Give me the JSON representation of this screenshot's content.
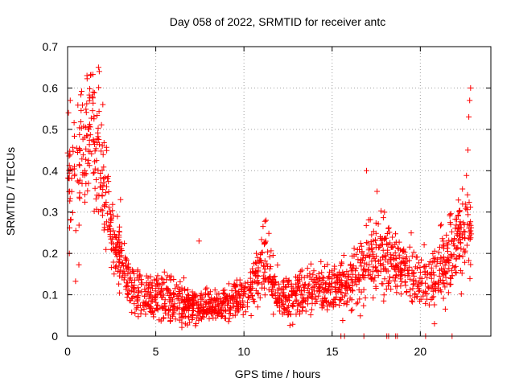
{
  "chart_data": {
    "type": "scatter",
    "title": "Day 058 of 2022, SRMTID for receiver antc",
    "xlabel": "GPS time / hours",
    "ylabel": "SRMTID / TECUs",
    "xlim": [
      0,
      24
    ],
    "ylim": [
      0,
      0.7
    ],
    "xticks": [
      0,
      5,
      10,
      15,
      20
    ],
    "yticks": [
      0,
      0.1,
      0.2,
      0.3,
      0.4,
      0.5,
      0.6,
      0.7
    ],
    "x_tick_labels": [
      "0",
      "5",
      "10",
      "15",
      "20"
    ],
    "y_tick_labels": [
      "0",
      "0.1",
      "0.2",
      "0.3",
      "0.4",
      "0.5",
      "0.6",
      "0.7"
    ],
    "grid": true,
    "marker": "+",
    "color": "#ff0000",
    "trend": [
      {
        "x": 0.0,
        "y": 0.4,
        "spread": 0.12
      },
      {
        "x": 0.5,
        "y": 0.38,
        "spread": 0.14
      },
      {
        "x": 1.0,
        "y": 0.45,
        "spread": 0.12
      },
      {
        "x": 1.3,
        "y": 0.52,
        "spread": 0.1
      },
      {
        "x": 1.7,
        "y": 0.45,
        "spread": 0.12
      },
      {
        "x": 2.1,
        "y": 0.35,
        "spread": 0.1
      },
      {
        "x": 2.5,
        "y": 0.24,
        "spread": 0.07
      },
      {
        "x": 3.0,
        "y": 0.18,
        "spread": 0.06
      },
      {
        "x": 3.5,
        "y": 0.12,
        "spread": 0.05
      },
      {
        "x": 4.0,
        "y": 0.1,
        "spread": 0.04
      },
      {
        "x": 5.0,
        "y": 0.1,
        "spread": 0.04
      },
      {
        "x": 6.0,
        "y": 0.09,
        "spread": 0.04
      },
      {
        "x": 7.0,
        "y": 0.07,
        "spread": 0.03
      },
      {
        "x": 8.0,
        "y": 0.07,
        "spread": 0.03
      },
      {
        "x": 9.0,
        "y": 0.08,
        "spread": 0.03
      },
      {
        "x": 10.0,
        "y": 0.1,
        "spread": 0.04
      },
      {
        "x": 10.8,
        "y": 0.14,
        "spread": 0.05
      },
      {
        "x": 11.2,
        "y": 0.2,
        "spread": 0.06
      },
      {
        "x": 11.6,
        "y": 0.12,
        "spread": 0.05
      },
      {
        "x": 12.5,
        "y": 0.08,
        "spread": 0.04
      },
      {
        "x": 13.0,
        "y": 0.1,
        "spread": 0.04
      },
      {
        "x": 14.0,
        "y": 0.12,
        "spread": 0.04
      },
      {
        "x": 15.0,
        "y": 0.11,
        "spread": 0.04
      },
      {
        "x": 16.0,
        "y": 0.13,
        "spread": 0.05
      },
      {
        "x": 17.0,
        "y": 0.18,
        "spread": 0.07
      },
      {
        "x": 18.0,
        "y": 0.2,
        "spread": 0.07
      },
      {
        "x": 19.0,
        "y": 0.16,
        "spread": 0.06
      },
      {
        "x": 20.0,
        "y": 0.13,
        "spread": 0.05
      },
      {
        "x": 21.0,
        "y": 0.15,
        "spread": 0.06
      },
      {
        "x": 22.0,
        "y": 0.22,
        "spread": 0.08
      },
      {
        "x": 22.8,
        "y": 0.27,
        "spread": 0.08
      }
    ],
    "num_points": 1800,
    "highlight_points": [
      {
        "x": 1.1,
        "y": 0.63
      },
      {
        "x": 1.45,
        "y": 0.59
      },
      {
        "x": 1.75,
        "y": 0.65
      },
      {
        "x": 1.8,
        "y": 0.64
      },
      {
        "x": 0.15,
        "y": 0.57
      },
      {
        "x": 0.05,
        "y": 0.54
      },
      {
        "x": 22.85,
        "y": 0.6
      },
      {
        "x": 22.8,
        "y": 0.57
      },
      {
        "x": 22.75,
        "y": 0.53
      },
      {
        "x": 22.7,
        "y": 0.45
      },
      {
        "x": 16.95,
        "y": 0.4
      },
      {
        "x": 17.55,
        "y": 0.35
      },
      {
        "x": 11.25,
        "y": 0.28
      },
      {
        "x": 7.45,
        "y": 0.23
      },
      {
        "x": 3.0,
        "y": 0.33
      },
      {
        "x": 2.0,
        "y": 0.56
      },
      {
        "x": 0.1,
        "y": 0.2
      },
      {
        "x": 20.8,
        "y": 0.03
      },
      {
        "x": 15.5,
        "y": 0.0
      },
      {
        "x": 15.7,
        "y": 0.0
      },
      {
        "x": 16.8,
        "y": 0.0
      },
      {
        "x": 18.1,
        "y": 0.0
      },
      {
        "x": 18.2,
        "y": 0.0
      },
      {
        "x": 18.6,
        "y": 0.0
      },
      {
        "x": 18.7,
        "y": 0.0
      },
      {
        "x": 20.3,
        "y": 0.0
      },
      {
        "x": 21.8,
        "y": 0.0
      }
    ]
  }
}
